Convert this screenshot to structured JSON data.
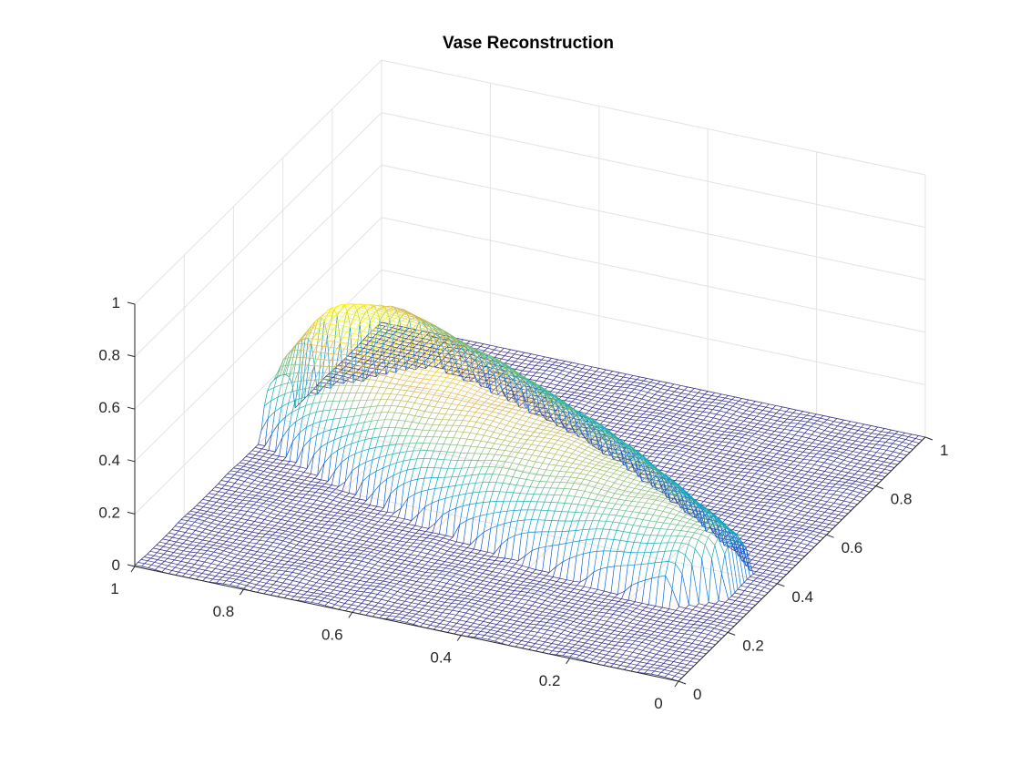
{
  "chart_data": {
    "type": "surface",
    "title": "Vase Reconstruction",
    "xlabel": "",
    "ylabel": "",
    "zlabel": "",
    "xlim": [
      0,
      1
    ],
    "ylim": [
      0,
      1
    ],
    "zlim": [
      0,
      1
    ],
    "x_ticks": [
      "0",
      "0.2",
      "0.4",
      "0.6",
      "0.8",
      "1"
    ],
    "y_ticks": [
      "0",
      "0.2",
      "0.4",
      "0.6",
      "0.8",
      "1"
    ],
    "z_ticks": [
      "0",
      "0.2",
      "0.4",
      "0.6",
      "0.8",
      "1"
    ],
    "grid": true,
    "colormap": "parula",
    "view": "3d-mesh",
    "surface": {
      "description": "height field z(x,y) of reconstructed vase lying on its side",
      "peak_height": 0.33,
      "spikes": [
        {
          "x": 0.82,
          "y": 0.62,
          "z": 0.22
        },
        {
          "x": 0.52,
          "y": 0.42,
          "z": 0.1
        }
      ]
    }
  }
}
